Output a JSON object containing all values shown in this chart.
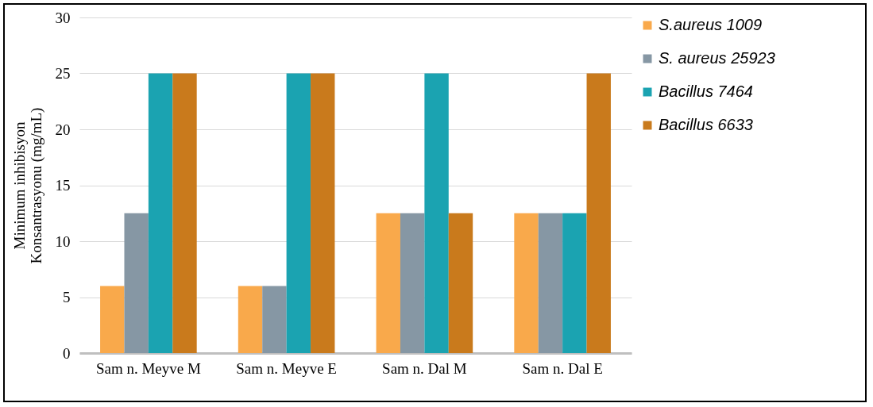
{
  "chart_data": {
    "type": "bar",
    "ylabel": "Minimum inhibisyon\nKonsantrasyonu (mg/mL)",
    "categories": [
      "Sam n. Meyve M",
      "Sam n. Meyve E",
      "Sam n. Dal M",
      "Sam n. Dal E"
    ],
    "series": [
      {
        "name": "S.aureus 1009",
        "color": "#f9a94b",
        "values": [
          6,
          6,
          12.5,
          12.5
        ]
      },
      {
        "name": "S. aureus 25923",
        "color": "#8697a4",
        "values": [
          12.5,
          6,
          12.5,
          12.5
        ]
      },
      {
        "name": "Bacillus 7464",
        "color": "#1ba3b1",
        "values": [
          25,
          25,
          25,
          12.5
        ]
      },
      {
        "name": "Bacillus 6633",
        "color": "#c97a1c",
        "values": [
          25,
          25,
          12.5,
          25
        ]
      }
    ],
    "ylim": [
      0,
      30
    ],
    "yticks": [
      0,
      5,
      10,
      15,
      20,
      25,
      30
    ],
    "grid": "y",
    "legend": "right"
  }
}
